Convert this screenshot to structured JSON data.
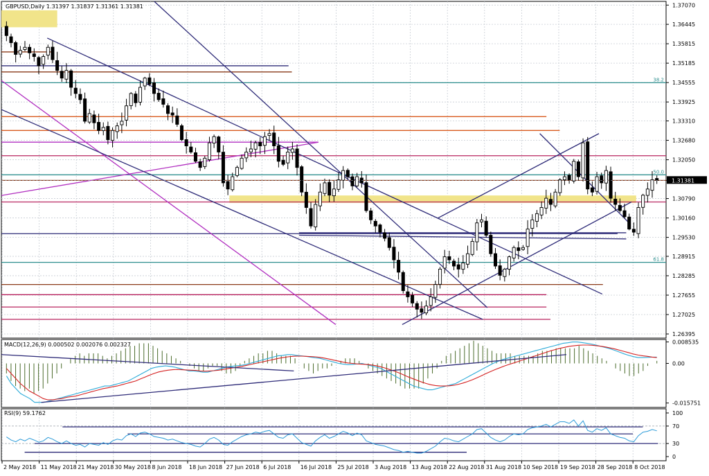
{
  "chart_data": {
    "type": "candlestick",
    "colors": {
      "grid": "#c8cdd4",
      "frame": "#000000",
      "candle": "#000000",
      "zone": "#f1e48a",
      "trendline": "#2e2b78",
      "magenta": "#b12fc0",
      "pink": "#b8245f",
      "orange": "#d95a1e",
      "brown": "#8a3a18",
      "fib": "#2f8f8f",
      "macd_hist": "#4a6b2a",
      "macd_signal": "#d42020",
      "macd_main": "#2aaad8",
      "rsi": "#2a9ad8",
      "current_price_bg": "#000000",
      "current_price_fg": "#ffffff"
    },
    "main_pane": {
      "title": "GBPUSD,Daily  1.31397 1.31837 1.31361 1.31381",
      "ylim": [
        1.2626,
        1.3719
      ],
      "price_labels": [
        "1.37070",
        "1.36445",
        "1.35815",
        "1.35185",
        "1.34555",
        "1.33925",
        "1.33310",
        "1.32680",
        "1.32050",
        "1.31381",
        "1.30790",
        "1.30160",
        "1.29530",
        "1.28915",
        "1.28285",
        "1.27655",
        "1.27025",
        "1.26395"
      ],
      "price_values": [
        1.3707,
        1.36445,
        1.35815,
        1.35185,
        1.34555,
        1.33925,
        1.3331,
        1.3268,
        1.3205,
        1.31381,
        1.3079,
        1.3016,
        1.2953,
        1.28915,
        1.28285,
        1.27655,
        1.27025,
        1.26395
      ],
      "current_price": "1.31381",
      "fib_labels": [
        {
          "text": "38.2",
          "price": 1.3455
        },
        {
          "text": "50.0",
          "price": 1.3156
        },
        {
          "text": "61.8",
          "price": 1.2872
        }
      ]
    },
    "x_dates": [
      "2 May 2018",
      "11 May 2018",
      "21 May 2018",
      "30 May 2018",
      "8 Jun 2018",
      "18 Jun 2018",
      "27 Jun 2018",
      "6 Jul 2018",
      "16 Jul 2018",
      "25 Jul 2018",
      "3 Aug 2018",
      "13 Aug 2018",
      "22 Aug 2018",
      "31 Aug 2018",
      "10 Sep 2018",
      "19 Sep 2018",
      "28 Sep 2018",
      "8 Oct 2018"
    ],
    "closes": [
      1.3608,
      1.3585,
      1.3547,
      1.356,
      1.357,
      1.3552,
      1.354,
      1.351,
      1.354,
      1.357,
      1.353,
      1.3495,
      1.347,
      1.3495,
      1.344,
      1.342,
      1.34,
      1.333,
      1.3355,
      1.3325,
      1.33,
      1.331,
      1.327,
      1.33,
      1.3315,
      1.333,
      1.338,
      1.342,
      1.339,
      1.344,
      1.347,
      1.345,
      1.342,
      1.34,
      1.3385,
      1.3355,
      1.335,
      1.332,
      1.327,
      1.325,
      1.323,
      1.32,
      1.318,
      1.321,
      1.326,
      1.328,
      1.323,
      1.313,
      1.311,
      1.315,
      1.318,
      1.321,
      1.323,
      1.324,
      1.326,
      1.325,
      1.328,
      1.329,
      1.325,
      1.32,
      1.319,
      1.323,
      1.324,
      1.318,
      1.31,
      1.305,
      1.299,
      1.306,
      1.31,
      1.313,
      1.309,
      1.311,
      1.314,
      1.317,
      1.315,
      1.312,
      1.315,
      1.313,
      1.304,
      1.301,
      1.299,
      1.297,
      1.295,
      1.292,
      1.288,
      1.284,
      1.278,
      1.276,
      1.274,
      1.272,
      1.271,
      1.273,
      1.276,
      1.28,
      1.285,
      1.289,
      1.288,
      1.286,
      1.285,
      1.287,
      1.29,
      1.294,
      1.3,
      1.301,
      1.296,
      1.29,
      1.286,
      1.283,
      1.285,
      1.289,
      1.292,
      1.291,
      1.292,
      1.298,
      1.301,
      1.303,
      1.305,
      1.308,
      1.306,
      1.31,
      1.314,
      1.315,
      1.314,
      1.32,
      1.315,
      1.326,
      1.311,
      1.31,
      1.315,
      1.313,
      1.317,
      1.308,
      1.306,
      1.304,
      1.302,
      1.298,
      1.297,
      1.305,
      1.309,
      1.311,
      1.314,
      1.3138
    ],
    "shaded_zones": [
      {
        "x_from": 0.0,
        "x_to": 0.084,
        "y_from": 1.369,
        "y_to": 1.3635
      },
      {
        "x_from": 0.343,
        "x_to": 0.955,
        "y_from": 1.3089,
        "y_to": 1.3065
      }
    ],
    "horizontal_levels": [
      {
        "price": 1.3555,
        "x_to": 0.078,
        "color": "brown"
      },
      {
        "price": 1.351,
        "x_to": 0.432,
        "color": "trendline"
      },
      {
        "price": 1.349,
        "x_to": 0.437,
        "color": "brown"
      },
      {
        "price": 1.3455,
        "x_to": 1.0,
        "color": "fib"
      },
      {
        "price": 1.3345,
        "x_to": 0.82,
        "color": "orange"
      },
      {
        "price": 1.33,
        "x_to": 0.84,
        "color": "orange"
      },
      {
        "price": 1.3262,
        "x_to": 0.477,
        "color": "magenta"
      },
      {
        "price": 1.3218,
        "x_to": 1.0,
        "color": "pink"
      },
      {
        "price": 1.3156,
        "x_to": 1.0,
        "color": "fib"
      },
      {
        "price": 1.3138,
        "x_to": 1.0,
        "color": "brown"
      },
      {
        "price": 1.3068,
        "x_to": 1.0,
        "color": "pink"
      },
      {
        "price": 1.2965,
        "x_to": 0.927,
        "color": "trendline"
      },
      {
        "price": 1.2872,
        "x_to": 1.0,
        "color": "fib"
      },
      {
        "price": 1.28,
        "x_to": 0.905,
        "color": "brown"
      },
      {
        "price": 1.2767,
        "x_to": 0.82,
        "color": "pink"
      },
      {
        "price": 1.2727,
        "x_to": 0.82,
        "color": "pink"
      },
      {
        "price": 1.2687,
        "x_to": 0.826,
        "color": "pink"
      }
    ],
    "trend_lines": [
      {
        "x1": 0.0,
        "y1": 1.3462,
        "x2": 0.503,
        "y2": 1.267,
        "color": "magenta"
      },
      {
        "x1": 0.0,
        "y1": 1.3089,
        "x2": 0.477,
        "y2": 1.3262,
        "color": "magenta"
      },
      {
        "x1": 0.0,
        "y1": 1.3368,
        "x2": 0.724,
        "y2": 1.2687,
        "color": "trendline"
      },
      {
        "x1": 0.069,
        "y1": 1.36,
        "x2": 0.904,
        "y2": 1.2769,
        "color": "trendline"
      },
      {
        "x1": 0.23,
        "y1": 1.3719,
        "x2": 0.731,
        "y2": 1.2725,
        "color": "trendline"
      },
      {
        "x1": 0.603,
        "y1": 1.267,
        "x2": 0.948,
        "y2": 1.3068,
        "color": "trendline"
      },
      {
        "x1": 0.656,
        "y1": 1.3015,
        "x2": 0.899,
        "y2": 1.329,
        "color": "trendline"
      },
      {
        "x1": 0.81,
        "y1": 1.329,
        "x2": 0.943,
        "y2": 1.3003,
        "color": "trendline"
      },
      {
        "x1": 0.448,
        "y1": 1.2968,
        "x2": 0.94,
        "y2": 1.2968,
        "color": "trendline"
      },
      {
        "x1": 0.448,
        "y1": 1.296,
        "x2": 0.94,
        "y2": 1.2948,
        "color": "trendline"
      }
    ],
    "macd_pane": {
      "title": "MACD(12,26,9) 0.000502 0.002076 0.002327",
      "ylim": [
        -0.0175,
        0.0095
      ],
      "labels": [
        "0.008535",
        "0.00",
        "-0.015751"
      ],
      "label_values": [
        0.008535,
        0.0,
        -0.015751
      ],
      "histogram": [
        -0.004,
        -0.007,
        -0.009,
        -0.01,
        -0.011,
        -0.01,
        -0.012,
        -0.011,
        -0.01,
        -0.008,
        -0.006,
        -0.004,
        -0.002,
        0.0,
        0.002,
        0.003,
        0.004,
        0.003,
        0.004,
        0.004,
        0.004,
        0.003,
        0.002,
        0.003,
        0.004,
        0.005,
        0.006,
        0.007,
        0.007,
        0.008,
        0.008,
        0.008,
        0.007,
        0.006,
        0.005,
        0.004,
        0.003,
        0.002,
        0.001,
        0.0,
        -0.001,
        -0.002,
        -0.003,
        -0.003,
        -0.002,
        -0.001,
        -0.001,
        -0.003,
        -0.004,
        -0.004,
        -0.003,
        -0.001,
        0.001,
        0.002,
        0.003,
        0.004,
        0.004,
        0.005,
        0.005,
        0.004,
        0.003,
        0.003,
        0.003,
        0.002,
        0.0,
        -0.002,
        -0.003,
        -0.004,
        -0.003,
        -0.002,
        -0.002,
        -0.001,
        0.0,
        0.001,
        0.002,
        0.002,
        0.002,
        0.001,
        0.0,
        -0.002,
        -0.003,
        -0.004,
        -0.005,
        -0.006,
        -0.007,
        -0.008,
        -0.009,
        -0.01,
        -0.01,
        -0.01,
        -0.01,
        -0.008,
        -0.006,
        -0.004,
        -0.002,
        0.001,
        0.003,
        0.004,
        0.005,
        0.006,
        0.007,
        0.008,
        0.009,
        0.008,
        0.007,
        0.006,
        0.005,
        0.004,
        0.004,
        0.004,
        0.004,
        0.003,
        0.003,
        0.003,
        0.003,
        0.003,
        0.004,
        0.005,
        0.005,
        0.005,
        0.006,
        0.006,
        0.006,
        0.006,
        0.006,
        0.007,
        0.006,
        0.005,
        0.004,
        0.003,
        0.002,
        0.001,
        0.0,
        -0.002,
        -0.003,
        -0.004,
        -0.005,
        -0.005,
        -0.004,
        -0.003,
        -0.001,
        0.0,
        0.001
      ],
      "main": [
        -0.005,
        -0.008,
        -0.01,
        -0.012,
        -0.013,
        -0.014,
        -0.0155,
        -0.0155,
        -0.0155,
        -0.015,
        -0.0145,
        -0.014,
        -0.0135,
        -0.013,
        -0.0125,
        -0.012,
        -0.0115,
        -0.011,
        -0.0105,
        -0.01,
        -0.0095,
        -0.009,
        -0.009,
        -0.0085,
        -0.008,
        -0.0075,
        -0.007,
        -0.006,
        -0.005,
        -0.004,
        -0.003,
        -0.002,
        -0.0015,
        -0.0012,
        -0.001,
        -0.0012,
        -0.0015,
        -0.002,
        -0.0025,
        -0.003,
        -0.003,
        -0.0032,
        -0.0035,
        -0.0035,
        -0.003,
        -0.0025,
        -0.002,
        -0.0015,
        -0.0012,
        -0.001,
        -0.0008,
        -0.0005,
        0.0,
        0.0005,
        0.001,
        0.0015,
        0.002,
        0.0025,
        0.003,
        0.0032,
        0.0035,
        0.0035,
        0.0032,
        0.003,
        0.0028,
        0.0025,
        0.0022,
        0.002,
        0.0015,
        0.001,
        0.0005,
        0.0,
        -0.0003,
        -0.0005,
        -0.0004,
        -0.0002,
        0.0,
        -0.0005,
        -0.001,
        -0.0015,
        -0.002,
        -0.003,
        -0.004,
        -0.005,
        -0.006,
        -0.007,
        -0.008,
        -0.009,
        -0.0095,
        -0.01,
        -0.0105,
        -0.0105,
        -0.01,
        -0.0095,
        -0.009,
        -0.0085,
        -0.008,
        -0.007,
        -0.006,
        -0.005,
        -0.004,
        -0.003,
        -0.002,
        -0.001,
        0.0,
        0.0008,
        0.0015,
        0.002,
        0.0025,
        0.003,
        0.0035,
        0.004,
        0.0045,
        0.005,
        0.0055,
        0.006,
        0.0065,
        0.007,
        0.0075,
        0.008,
        0.0082,
        0.0085,
        0.0085,
        0.0083,
        0.008,
        0.0077,
        0.0073,
        0.0068,
        0.0063,
        0.0058,
        0.0052,
        0.0045,
        0.0038,
        0.0032,
        0.0027,
        0.0023,
        0.0023,
        0.0024,
        0.0025,
        0.0025
      ],
      "signal": [
        -0.002,
        -0.004,
        -0.006,
        -0.008,
        -0.0095,
        -0.011,
        -0.012,
        -0.013,
        -0.014,
        -0.0145,
        -0.0145,
        -0.0142,
        -0.014,
        -0.0135,
        -0.0132,
        -0.013,
        -0.0125,
        -0.012,
        -0.0115,
        -0.011,
        -0.0105,
        -0.01,
        -0.0097,
        -0.0093,
        -0.009,
        -0.0085,
        -0.008,
        -0.0075,
        -0.007,
        -0.0062,
        -0.0055,
        -0.0047,
        -0.004,
        -0.0034,
        -0.003,
        -0.0027,
        -0.0025,
        -0.0024,
        -0.0025,
        -0.0026,
        -0.0027,
        -0.0028,
        -0.003,
        -0.0031,
        -0.003,
        -0.0029,
        -0.0027,
        -0.0024,
        -0.0021,
        -0.0018,
        -0.0015,
        -0.0012,
        -0.0008,
        -0.0004,
        0.0,
        0.0004,
        0.0008,
        0.0012,
        0.0016,
        0.002,
        0.0023,
        0.0026,
        0.0028,
        0.0029,
        0.0029,
        0.0028,
        0.0027,
        0.0026,
        0.0024,
        0.0021,
        0.0017,
        0.0013,
        0.0009,
        0.0005,
        0.0002,
        0.0,
        -0.0002,
        -0.0003,
        -0.0004,
        -0.0006,
        -0.0009,
        -0.0013,
        -0.0018,
        -0.0024,
        -0.003,
        -0.0037,
        -0.0045,
        -0.0053,
        -0.006,
        -0.0067,
        -0.0074,
        -0.008,
        -0.0085,
        -0.0088,
        -0.009,
        -0.009,
        -0.0089,
        -0.0087,
        -0.0083,
        -0.0078,
        -0.0072,
        -0.0065,
        -0.0057,
        -0.0049,
        -0.004,
        -0.0032,
        -0.0024,
        -0.0017,
        -0.001,
        -0.0004,
        0.0002,
        0.0008,
        0.0014,
        0.002,
        0.0026,
        0.0032,
        0.0038,
        0.0044,
        0.005,
        0.0055,
        0.006,
        0.0064,
        0.0068,
        0.007,
        0.0072,
        0.0073,
        0.0073,
        0.0072,
        0.007,
        0.0068,
        0.0065,
        0.0061,
        0.0057,
        0.0052,
        0.0047,
        0.0042,
        0.0037,
        0.0033,
        0.003,
        0.0028,
        0.0025,
        0.0023
      ]
    },
    "rsi_pane": {
      "title": "RSI(9) 59.1762",
      "ylim": [
        0,
        100
      ],
      "labels": [
        "100",
        "70",
        "30",
        "0"
      ],
      "label_values": [
        100,
        70,
        30,
        0
      ],
      "values": [
        45,
        38,
        34,
        40,
        36,
        42,
        38,
        33,
        36,
        44,
        40,
        34,
        30,
        36,
        30,
        26,
        28,
        22,
        30,
        28,
        26,
        32,
        28,
        36,
        40,
        38,
        48,
        52,
        46,
        54,
        56,
        52,
        46,
        44,
        42,
        38,
        40,
        36,
        32,
        30,
        28,
        24,
        22,
        30,
        40,
        44,
        38,
        28,
        26,
        34,
        40,
        46,
        50,
        52,
        56,
        54,
        58,
        60,
        52,
        44,
        42,
        50,
        52,
        42,
        32,
        28,
        24,
        36,
        44,
        50,
        42,
        46,
        52,
        58,
        54,
        48,
        54,
        50,
        36,
        32,
        28,
        26,
        24,
        20,
        16,
        14,
        10,
        12,
        10,
        8,
        8,
        12,
        18,
        24,
        34,
        42,
        40,
        36,
        34,
        40,
        46,
        52,
        62,
        64,
        54,
        44,
        38,
        34,
        38,
        46,
        52,
        50,
        52,
        62,
        66,
        68,
        70,
        74,
        68,
        74,
        80,
        80,
        76,
        84,
        70,
        82,
        60,
        56,
        64,
        60,
        66,
        52,
        48,
        44,
        42,
        36,
        34,
        48,
        56,
        58,
        62,
        59
      ]
    }
  }
}
